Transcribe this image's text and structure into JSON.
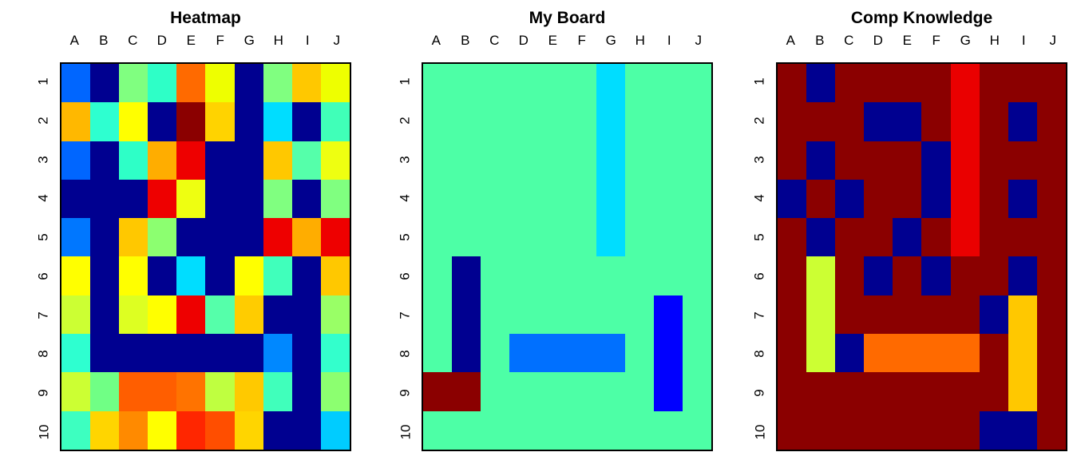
{
  "figure": {
    "background": "#ffffff"
  },
  "chart_data": [
    {
      "type": "heatmap",
      "title": "Heatmap",
      "x_labels": [
        "A",
        "B",
        "C",
        "D",
        "E",
        "F",
        "G",
        "H",
        "I",
        "J"
      ],
      "y_labels": [
        "1",
        "2",
        "3",
        "4",
        "5",
        "6",
        "7",
        "8",
        "9",
        "10"
      ],
      "legend": "none",
      "values_encoding": "cell color (jet palette, no numeric labels shown)",
      "cell_colors": [
        [
          "#0066FF",
          "#000090",
          "#80FF80",
          "#2EFFC7",
          "#FF6A00",
          "#EEFF00",
          "#000090",
          "#80FF80",
          "#FFC800",
          "#EEFF00"
        ],
        [
          "#FFB800",
          "#2EFFD0",
          "#FFFF00",
          "#000090",
          "#8B0000",
          "#FFD300",
          "#000090",
          "#00DDFF",
          "#000090",
          "#40FFB8"
        ],
        [
          "#0066FF",
          "#000090",
          "#2EFFC7",
          "#FFAD00",
          "#EE0000",
          "#000090",
          "#000090",
          "#FFC800",
          "#55FFAA",
          "#EEFF11"
        ],
        [
          "#000090",
          "#000090",
          "#000090",
          "#EE0000",
          "#EEFF11",
          "#000090",
          "#000090",
          "#80FF80",
          "#000090",
          "#80FF80"
        ],
        [
          "#0077FF",
          "#000090",
          "#FFC800",
          "#8CFF70",
          "#000090",
          "#000090",
          "#000090",
          "#EE0000",
          "#FFAD00",
          "#EE0000"
        ],
        [
          "#FFFF00",
          "#000090",
          "#FFFF00",
          "#000090",
          "#00DDFF",
          "#000090",
          "#FFFF00",
          "#40FFBB",
          "#000090",
          "#FFC800"
        ],
        [
          "#CCFF33",
          "#000090",
          "#DDFF22",
          "#FFFF00",
          "#EE0000",
          "#55FFAA",
          "#FFCC00",
          "#000090",
          "#000090",
          "#99FF66"
        ],
        [
          "#2EFFD0",
          "#000090",
          "#000090",
          "#000090",
          "#000090",
          "#000090",
          "#000090",
          "#0088FF",
          "#000090",
          "#33FFCC"
        ],
        [
          "#CCFF33",
          "#70FF85",
          "#FF5E00",
          "#FF5E00",
          "#FF7300",
          "#BFFF40",
          "#FFC900",
          "#40FFBB",
          "#000090",
          "#8CFF70"
        ],
        [
          "#3DFFC0",
          "#FFD500",
          "#FF8A00",
          "#FFFF00",
          "#FF2600",
          "#FF4E00",
          "#FFD500",
          "#000090",
          "#000090",
          "#00CCFF"
        ]
      ]
    },
    {
      "type": "heatmap",
      "title": "My Board",
      "x_labels": [
        "A",
        "B",
        "C",
        "D",
        "E",
        "F",
        "G",
        "H",
        "I",
        "J"
      ],
      "y_labels": [
        "1",
        "2",
        "3",
        "4",
        "5",
        "6",
        "7",
        "8",
        "9",
        "10"
      ],
      "legend": "none",
      "values_encoding": "cell color (board state, no numeric labels shown)",
      "cell_colors": [
        [
          "#4DFFA6",
          "#4DFFA6",
          "#4DFFA6",
          "#4DFFA6",
          "#4DFFA6",
          "#4DFFA6",
          "#00DDFF",
          "#4DFFA6",
          "#4DFFA6",
          "#4DFFA6"
        ],
        [
          "#4DFFA6",
          "#4DFFA6",
          "#4DFFA6",
          "#4DFFA6",
          "#4DFFA6",
          "#4DFFA6",
          "#00DDFF",
          "#4DFFA6",
          "#4DFFA6",
          "#4DFFA6"
        ],
        [
          "#4DFFA6",
          "#4DFFA6",
          "#4DFFA6",
          "#4DFFA6",
          "#4DFFA6",
          "#4DFFA6",
          "#00DDFF",
          "#4DFFA6",
          "#4DFFA6",
          "#4DFFA6"
        ],
        [
          "#4DFFA6",
          "#4DFFA6",
          "#4DFFA6",
          "#4DFFA6",
          "#4DFFA6",
          "#4DFFA6",
          "#00DDFF",
          "#4DFFA6",
          "#4DFFA6",
          "#4DFFA6"
        ],
        [
          "#4DFFA6",
          "#4DFFA6",
          "#4DFFA6",
          "#4DFFA6",
          "#4DFFA6",
          "#4DFFA6",
          "#00DDFF",
          "#4DFFA6",
          "#4DFFA6",
          "#4DFFA6"
        ],
        [
          "#4DFFA6",
          "#000090",
          "#4DFFA6",
          "#4DFFA6",
          "#4DFFA6",
          "#4DFFA6",
          "#4DFFA6",
          "#4DFFA6",
          "#4DFFA6",
          "#4DFFA6"
        ],
        [
          "#4DFFA6",
          "#000090",
          "#4DFFA6",
          "#4DFFA6",
          "#4DFFA6",
          "#4DFFA6",
          "#4DFFA6",
          "#4DFFA6",
          "#0000FF",
          "#4DFFA6"
        ],
        [
          "#4DFFA6",
          "#000090",
          "#4DFFA6",
          "#0070FF",
          "#0070FF",
          "#0070FF",
          "#0070FF",
          "#4DFFA6",
          "#0000FF",
          "#4DFFA6"
        ],
        [
          "#8B0000",
          "#8B0000",
          "#4DFFA6",
          "#4DFFA6",
          "#4DFFA6",
          "#4DFFA6",
          "#4DFFA6",
          "#4DFFA6",
          "#0000FF",
          "#4DFFA6"
        ],
        [
          "#4DFFA6",
          "#4DFFA6",
          "#4DFFA6",
          "#4DFFA6",
          "#4DFFA6",
          "#4DFFA6",
          "#4DFFA6",
          "#4DFFA6",
          "#4DFFA6",
          "#4DFFA6"
        ]
      ]
    },
    {
      "type": "heatmap",
      "title": "Comp Knowledge",
      "x_labels": [
        "A",
        "B",
        "C",
        "D",
        "E",
        "F",
        "G",
        "H",
        "I",
        "J"
      ],
      "y_labels": [
        "1",
        "2",
        "3",
        "4",
        "5",
        "6",
        "7",
        "8",
        "9",
        "10"
      ],
      "legend": "none",
      "values_encoding": "cell color (knowledge state, no numeric labels shown)",
      "cell_colors": [
        [
          "#8B0000",
          "#000090",
          "#8B0000",
          "#8B0000",
          "#8B0000",
          "#8B0000",
          "#EA0000",
          "#8B0000",
          "#8B0000",
          "#8B0000"
        ],
        [
          "#8B0000",
          "#8B0000",
          "#8B0000",
          "#000090",
          "#000090",
          "#8B0000",
          "#EA0000",
          "#8B0000",
          "#000090",
          "#8B0000"
        ],
        [
          "#8B0000",
          "#000090",
          "#8B0000",
          "#8B0000",
          "#8B0000",
          "#000090",
          "#EA0000",
          "#8B0000",
          "#8B0000",
          "#8B0000"
        ],
        [
          "#000090",
          "#8B0000",
          "#000090",
          "#8B0000",
          "#8B0000",
          "#000090",
          "#EA0000",
          "#8B0000",
          "#000090",
          "#8B0000"
        ],
        [
          "#8B0000",
          "#000090",
          "#8B0000",
          "#8B0000",
          "#000090",
          "#8B0000",
          "#EA0000",
          "#8B0000",
          "#8B0000",
          "#8B0000"
        ],
        [
          "#8B0000",
          "#CCFF33",
          "#8B0000",
          "#000090",
          "#8B0000",
          "#000090",
          "#8B0000",
          "#8B0000",
          "#000090",
          "#8B0000"
        ],
        [
          "#8B0000",
          "#CCFF33",
          "#8B0000",
          "#8B0000",
          "#8B0000",
          "#8B0000",
          "#8B0000",
          "#000090",
          "#FFC800",
          "#8B0000"
        ],
        [
          "#8B0000",
          "#CCFF33",
          "#000090",
          "#FF6A00",
          "#FF6A00",
          "#FF6A00",
          "#FF6A00",
          "#8B0000",
          "#FFC800",
          "#8B0000"
        ],
        [
          "#8B0000",
          "#8B0000",
          "#8B0000",
          "#8B0000",
          "#8B0000",
          "#8B0000",
          "#8B0000",
          "#8B0000",
          "#FFC800",
          "#8B0000"
        ],
        [
          "#8B0000",
          "#8B0000",
          "#8B0000",
          "#8B0000",
          "#8B0000",
          "#8B0000",
          "#8B0000",
          "#000090",
          "#000090",
          "#8B0000"
        ]
      ]
    }
  ]
}
